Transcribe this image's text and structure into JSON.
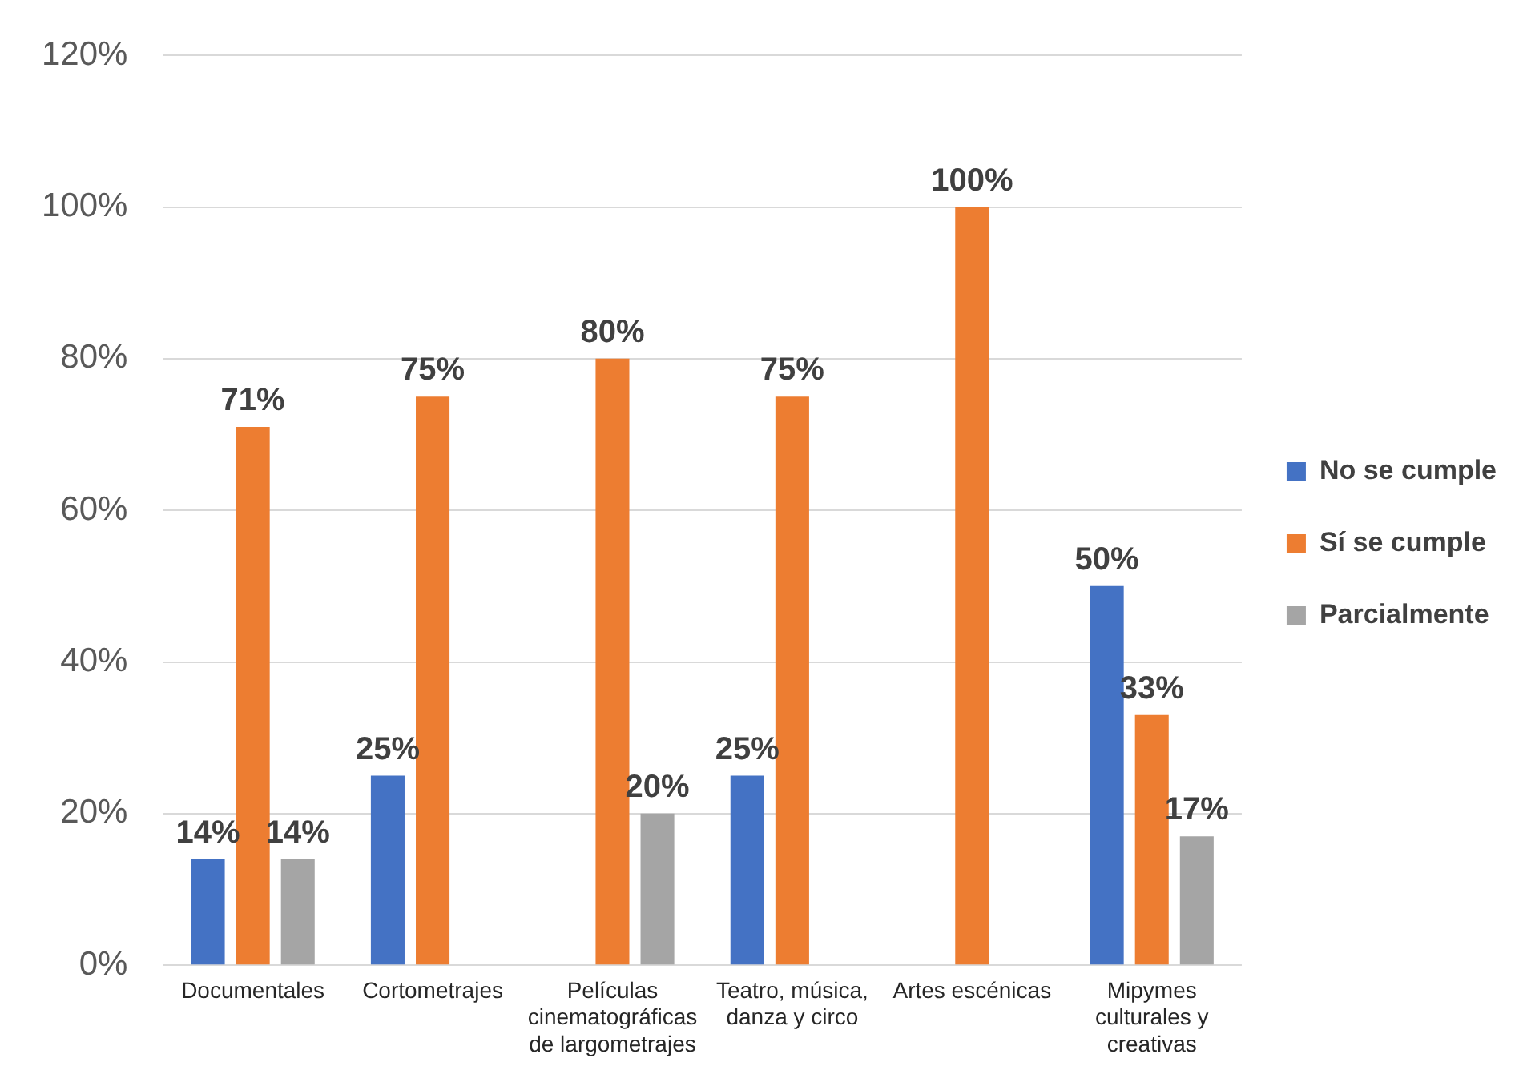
{
  "chart_data": {
    "type": "bar",
    "categories": [
      "Documentales",
      "Cortometrajes",
      "Películas cinematográficas de largometrajes",
      "Teatro, música, danza y circo",
      "Artes escénicas",
      "Mipymes culturales y creativas"
    ],
    "series": [
      {
        "name": "No se cumple",
        "color": "#4472c4",
        "values": [
          14,
          25,
          null,
          25,
          null,
          50
        ],
        "value_labels": [
          "14%",
          "25%",
          null,
          "25%",
          null,
          "50%"
        ]
      },
      {
        "name": "Sí se cumple",
        "color": "#ed7d31",
        "values": [
          71,
          75,
          80,
          75,
          100,
          33
        ],
        "value_labels": [
          "71%",
          "75%",
          "80%",
          "75%",
          "100%",
          "33%"
        ]
      },
      {
        "name": "Parcialmente",
        "color": "#a5a5a5",
        "values": [
          14,
          null,
          20,
          null,
          null,
          17
        ],
        "value_labels": [
          "14%",
          null,
          "20%",
          null,
          null,
          "17%"
        ]
      }
    ],
    "ylim": [
      0,
      120
    ],
    "yticks": [
      {
        "value": 0,
        "label": "0%"
      },
      {
        "value": 20,
        "label": "20%"
      },
      {
        "value": 40,
        "label": "40%"
      },
      {
        "value": 60,
        "label": "60%"
      },
      {
        "value": 80,
        "label": "80%"
      },
      {
        "value": 100,
        "label": "100%"
      },
      {
        "value": 120,
        "label": "120%"
      }
    ],
    "grid": "y",
    "legend": "right"
  }
}
